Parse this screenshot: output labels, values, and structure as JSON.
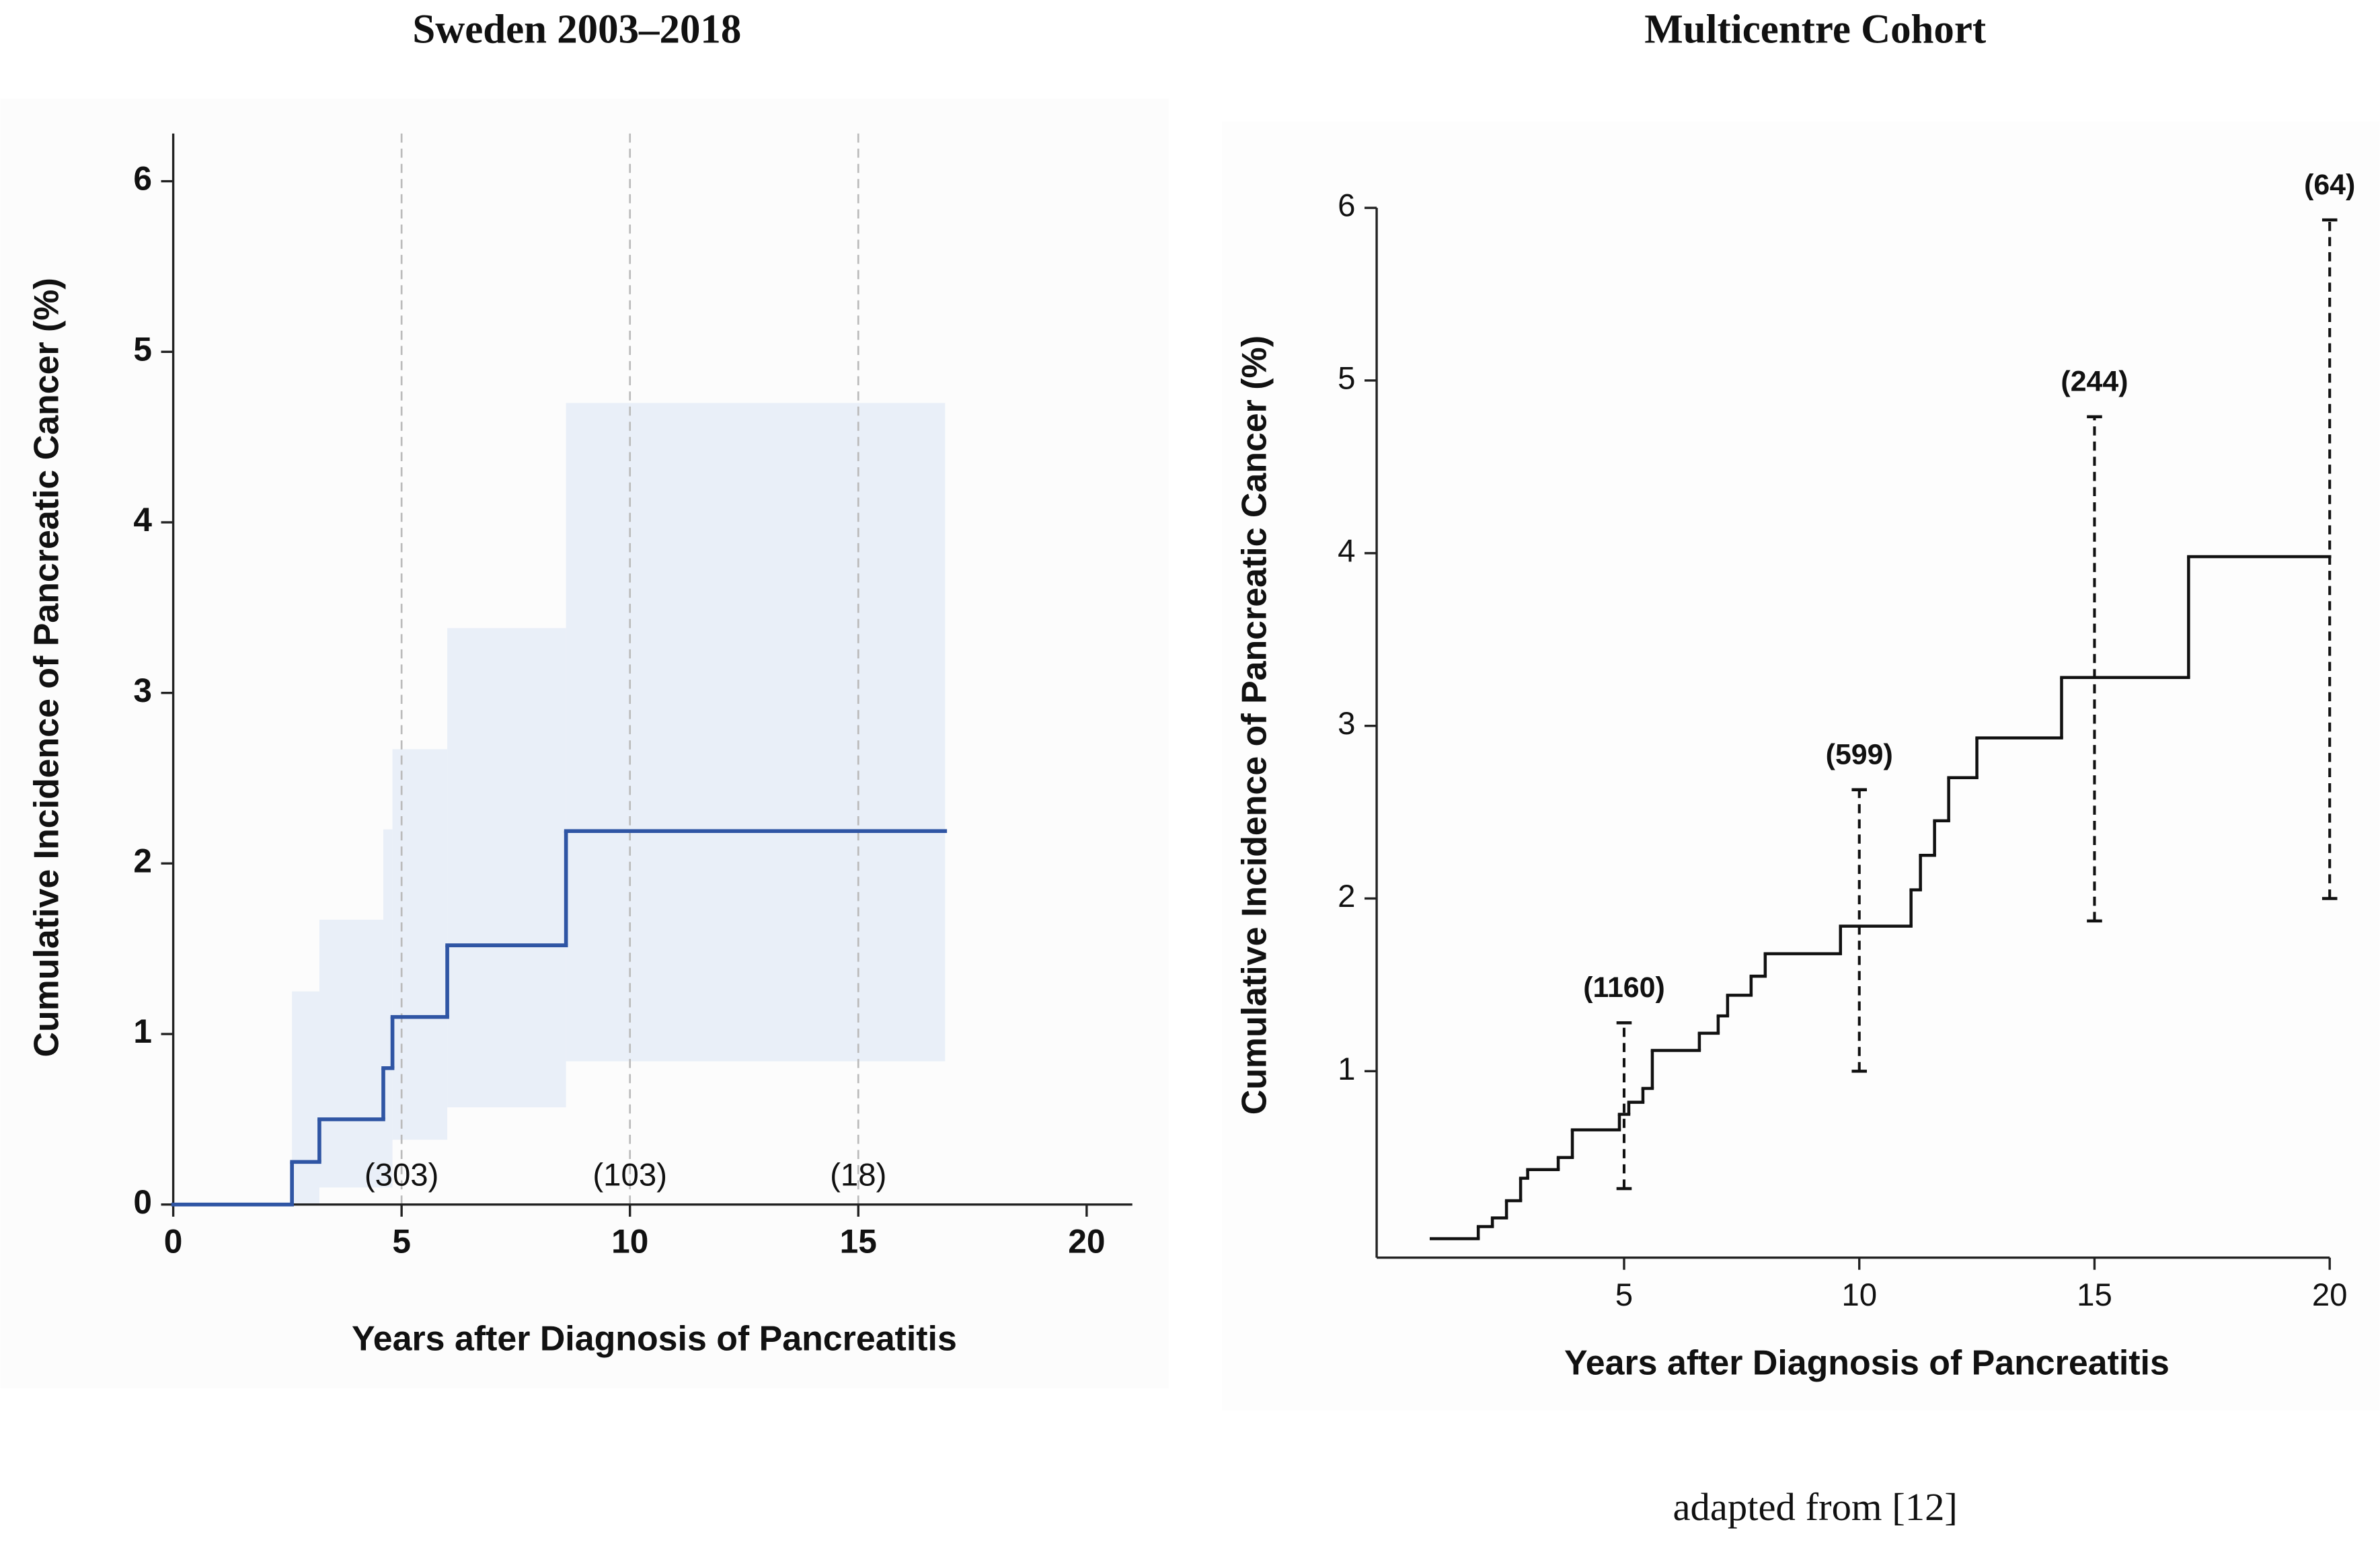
{
  "chart_data": [
    {
      "type": "step",
      "title": "Sweden 2003–2018",
      "x_label": "Years after Diagnosis of Pancreatitis",
      "y_label": "Cumulative Incidence of Pancreatic Cancer (%)",
      "x": [
        0,
        2.6,
        3.2,
        4.6,
        4.8,
        6,
        8.6
      ],
      "x_end": 16.9,
      "values": [
        0,
        0.25,
        0.5,
        0.8,
        1.1,
        1.52,
        2.19
      ],
      "ci_lower": [
        null,
        0,
        0.1,
        0.1,
        0.38,
        0.57,
        0.84
      ],
      "ci_upper": [
        null,
        1.25,
        1.67,
        2.2,
        2.67,
        3.38,
        4.7
      ],
      "color": "#2f55a4",
      "band_color": "#e9eff8",
      "vlines": [
        5,
        10,
        15
      ],
      "count_labels": {
        "x": [
          5,
          10,
          15
        ],
        "labels": [
          "(303)",
          "(103)",
          "(18)"
        ]
      },
      "xlim": [
        0,
        21
      ],
      "xticks": [
        0,
        5,
        10,
        15,
        20
      ],
      "ylim": [
        0,
        6.28
      ],
      "yticks": [
        0,
        1,
        2,
        3,
        4,
        5,
        6
      ]
    },
    {
      "type": "step",
      "title": "Multicentre Cohort",
      "x_label": "Years after Diagnosis of Pancreatitis",
      "y_label": "Cumulative Incidence of Pancreatic Cancer (%)",
      "x": [
        0.9,
        1.9,
        2.2,
        2.5,
        2.8,
        2.95,
        3.6,
        3.9,
        4.9,
        5.1,
        5.4,
        5.6,
        6.6,
        7.0,
        7.2,
        7.7,
        8.0,
        9.6,
        11.1,
        11.3,
        11.6,
        11.9,
        12.5,
        14.3,
        17.0
      ],
      "x_end": 20,
      "values": [
        0.03,
        0.1,
        0.15,
        0.25,
        0.38,
        0.43,
        0.5,
        0.66,
        0.75,
        0.82,
        0.9,
        1.12,
        1.22,
        1.32,
        1.44,
        1.55,
        1.68,
        1.84,
        2.05,
        2.25,
        2.45,
        2.7,
        2.93,
        3.28,
        3.98
      ],
      "color": "#111111",
      "error_bars": {
        "x": [
          5,
          10,
          15,
          20
        ],
        "lower": [
          0.32,
          1.0,
          1.87,
          2.0
        ],
        "upper": [
          1.28,
          2.63,
          4.79,
          5.93
        ],
        "labels": [
          "(1160)",
          "(599)",
          "(244)",
          "(64)"
        ]
      },
      "xlim": [
        -0.26,
        20
      ],
      "xticks": [
        5,
        10,
        15,
        20
      ],
      "ylim": [
        -0.08,
        6
      ],
      "yticks": [
        1,
        2,
        3,
        4,
        5,
        6
      ]
    }
  ],
  "caption": "adapted from [12]"
}
